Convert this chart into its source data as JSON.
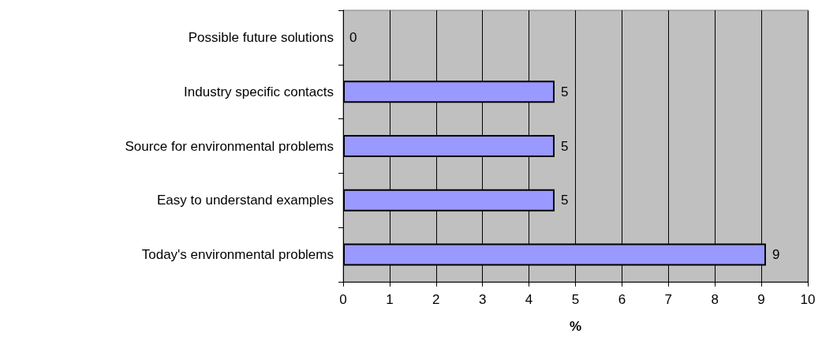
{
  "chart_data": {
    "type": "bar",
    "orientation": "horizontal",
    "xlabel": "%",
    "categories": [
      "Possible future solutions",
      "Industry specific contacts",
      "Source for environmental problems",
      "Easy to understand examples",
      "Today's environmental problems"
    ],
    "values": [
      0,
      4.55,
      4.55,
      4.55,
      9.1
    ],
    "value_labels": [
      "0",
      "5",
      "5",
      "5",
      "9"
    ],
    "color": "#9999ff",
    "xlim": [
      0,
      10
    ],
    "xticks": [
      0,
      1,
      2,
      3,
      4,
      5,
      6,
      7,
      8,
      9,
      10
    ],
    "grid": "x"
  }
}
